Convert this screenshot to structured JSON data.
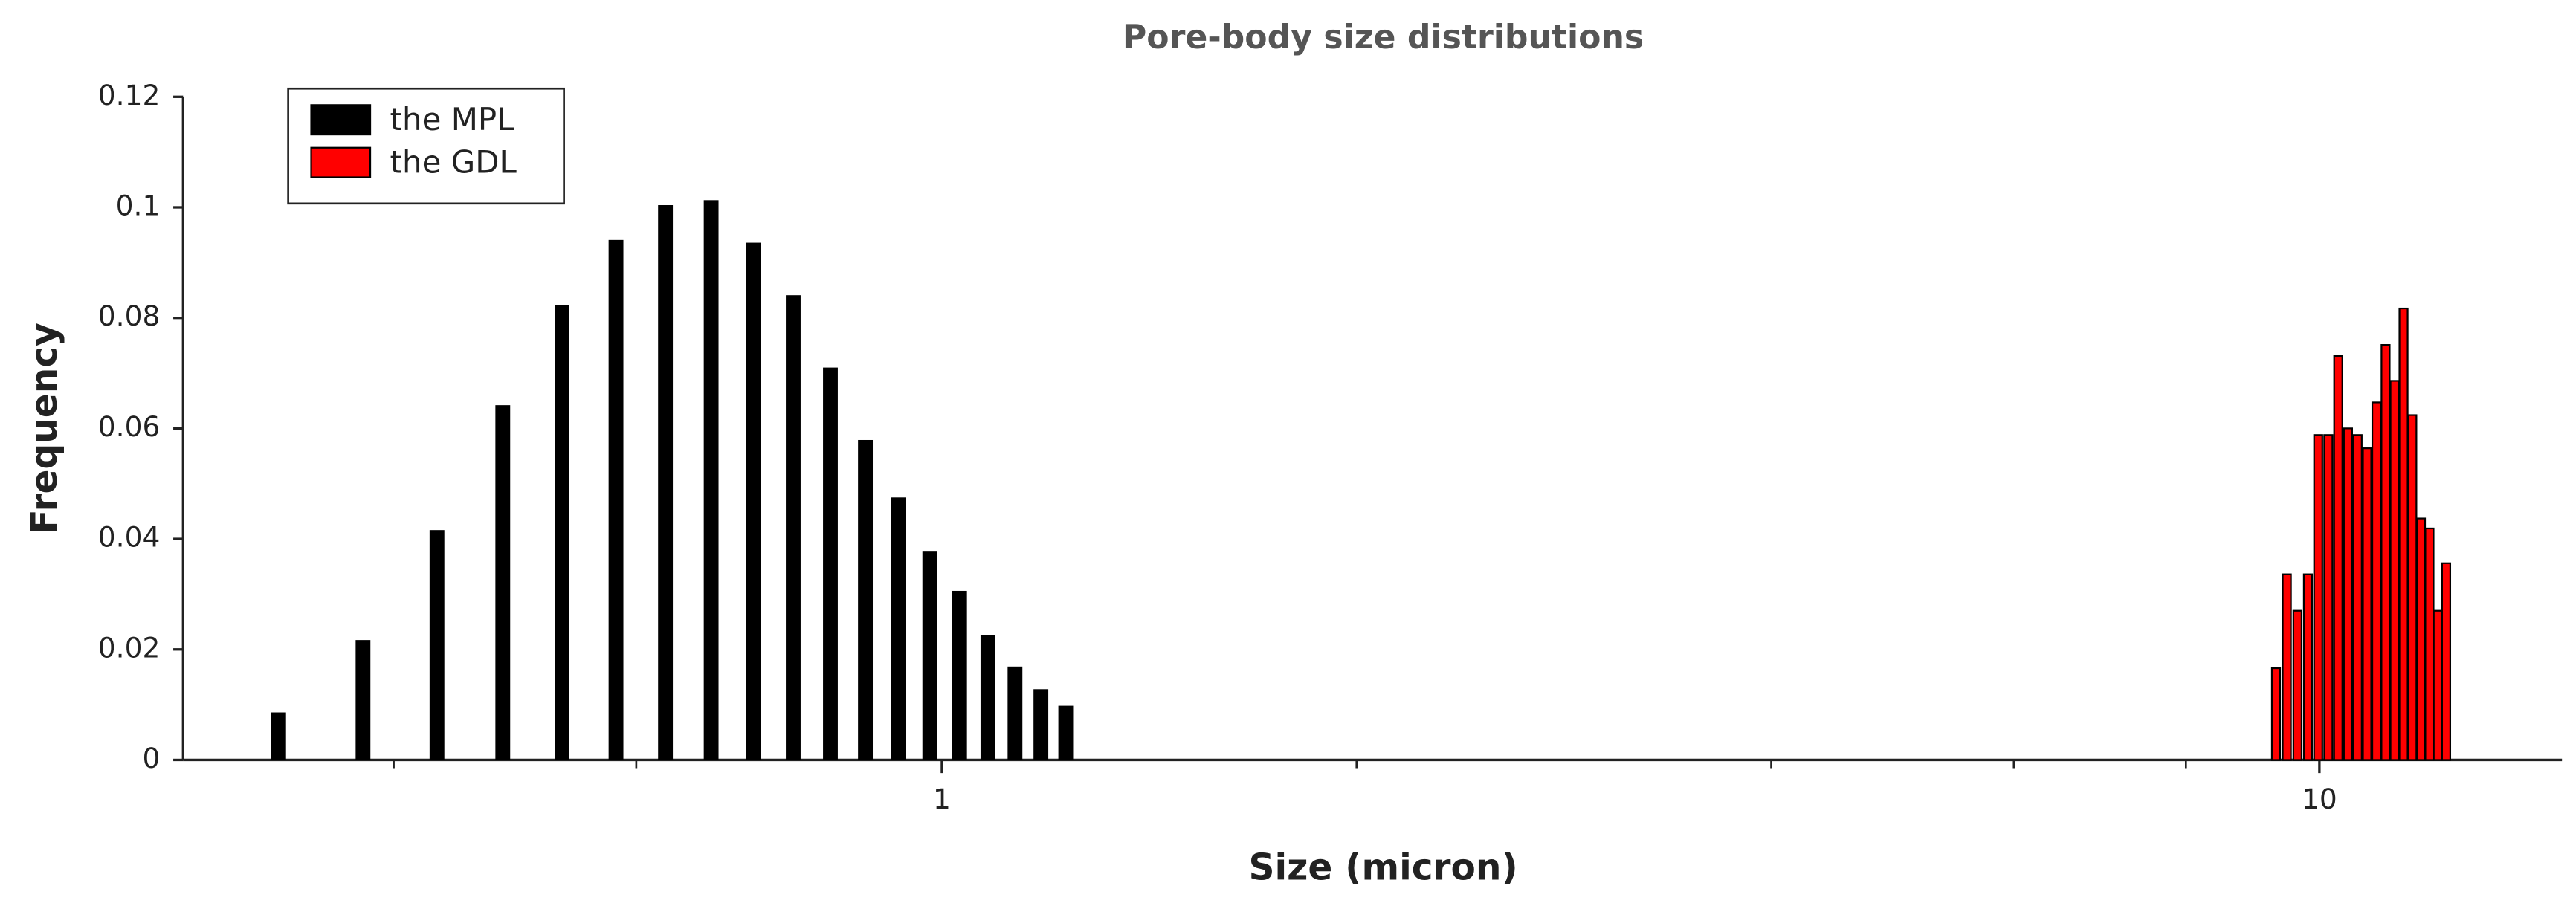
{
  "chart_data": {
    "type": "bar",
    "title": "Pore-body size distributions",
    "x_label": "Size (micron)",
    "y_label": "Frequency",
    "xscale": "log",
    "xlim": [
      0.2813,
      15.0
    ],
    "xticks": [
      1,
      10
    ],
    "xminorticks": [
      0.4,
      0.6,
      2,
      4,
      6,
      8
    ],
    "ylim": [
      0,
      0.12
    ],
    "yticks": [
      0,
      0.02,
      0.04,
      0.06,
      0.08,
      0.1,
      0.12
    ],
    "legend": "upper left",
    "series": [
      {
        "name": "the MPL",
        "color": "#000000",
        "x": [
          0.33,
          0.38,
          0.43,
          0.48,
          0.53,
          0.58,
          0.63,
          0.68,
          0.73,
          0.78,
          0.83,
          0.88,
          0.93,
          0.98,
          1.03,
          1.08,
          1.13,
          1.18,
          1.23
        ],
        "values": [
          0.0086,
          0.0217,
          0.0416,
          0.0642,
          0.0823,
          0.0941,
          0.1004,
          0.1013,
          0.0936,
          0.0841,
          0.071,
          0.0579,
          0.0475,
          0.0377,
          0.0306,
          0.0226,
          0.0169,
          0.0128,
          0.0098
        ]
      },
      {
        "name": "the GDL",
        "color": "#ff0000",
        "x": [
          9.3,
          9.47,
          9.64,
          9.81,
          9.98,
          10.15,
          10.32,
          10.49,
          10.66,
          10.83,
          11.0,
          11.17,
          11.34,
          11.51,
          11.68,
          11.85,
          12.02,
          12.19,
          12.36
        ],
        "values": [
          0.0166,
          0.0336,
          0.027,
          0.0336,
          0.0588,
          0.0588,
          0.0731,
          0.06,
          0.0588,
          0.0564,
          0.0647,
          0.0751,
          0.0686,
          0.0817,
          0.0624,
          0.0437,
          0.0419,
          0.027,
          0.0356
        ]
      }
    ]
  }
}
